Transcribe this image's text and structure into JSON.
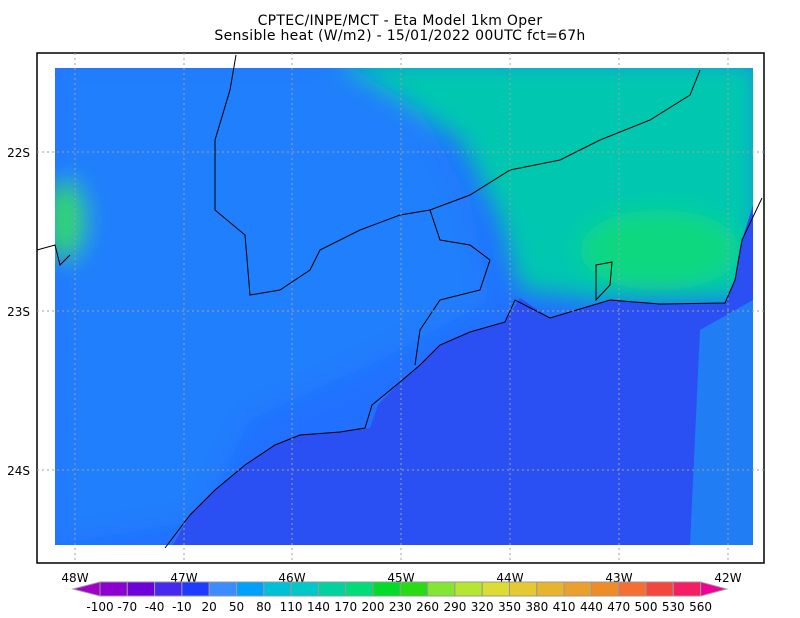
{
  "title": {
    "line1": "CPTEC/INPE/MCT -  Eta Model 1km Oper",
    "line2": "Sensible heat (W/m2) - 15/01/2022 00UTC fct=67h"
  },
  "map": {
    "lat_labels": [
      "22S",
      "23S",
      "24S"
    ],
    "lon_labels": [
      "48W",
      "47W",
      "46W",
      "45W",
      "44W",
      "43W",
      "42W"
    ],
    "colors": {
      "ocean": "#2a4ff2",
      "land_low": "#2270ff",
      "land_mid": "#1a9cf5",
      "land_high": "#00c8b0",
      "border": "#000000",
      "grid": "#a0a0a0"
    }
  },
  "colorbar": {
    "labels": [
      "-100",
      "-70",
      "-40",
      "-10",
      "20",
      "50",
      "80",
      "110",
      "140",
      "170",
      "200",
      "230",
      "260",
      "290",
      "320",
      "350",
      "380",
      "410",
      "440",
      "470",
      "500",
      "530",
      "560"
    ],
    "colors": [
      "#8c00d2",
      "#6e00dc",
      "#4628f0",
      "#1e3cff",
      "#3a8cff",
      "#00a0ff",
      "#00c0d8",
      "#00c8c8",
      "#00d2a0",
      "#00dc78",
      "#00dc28",
      "#28dc14",
      "#82e632",
      "#b4e632",
      "#dcdc32",
      "#e6c832",
      "#e6b42d",
      "#eba02d",
      "#f08c28",
      "#f56e32",
      "#f5463c",
      "#f51e64"
    ],
    "low_color": "#a000c8",
    "high_color": "#f00096"
  }
}
